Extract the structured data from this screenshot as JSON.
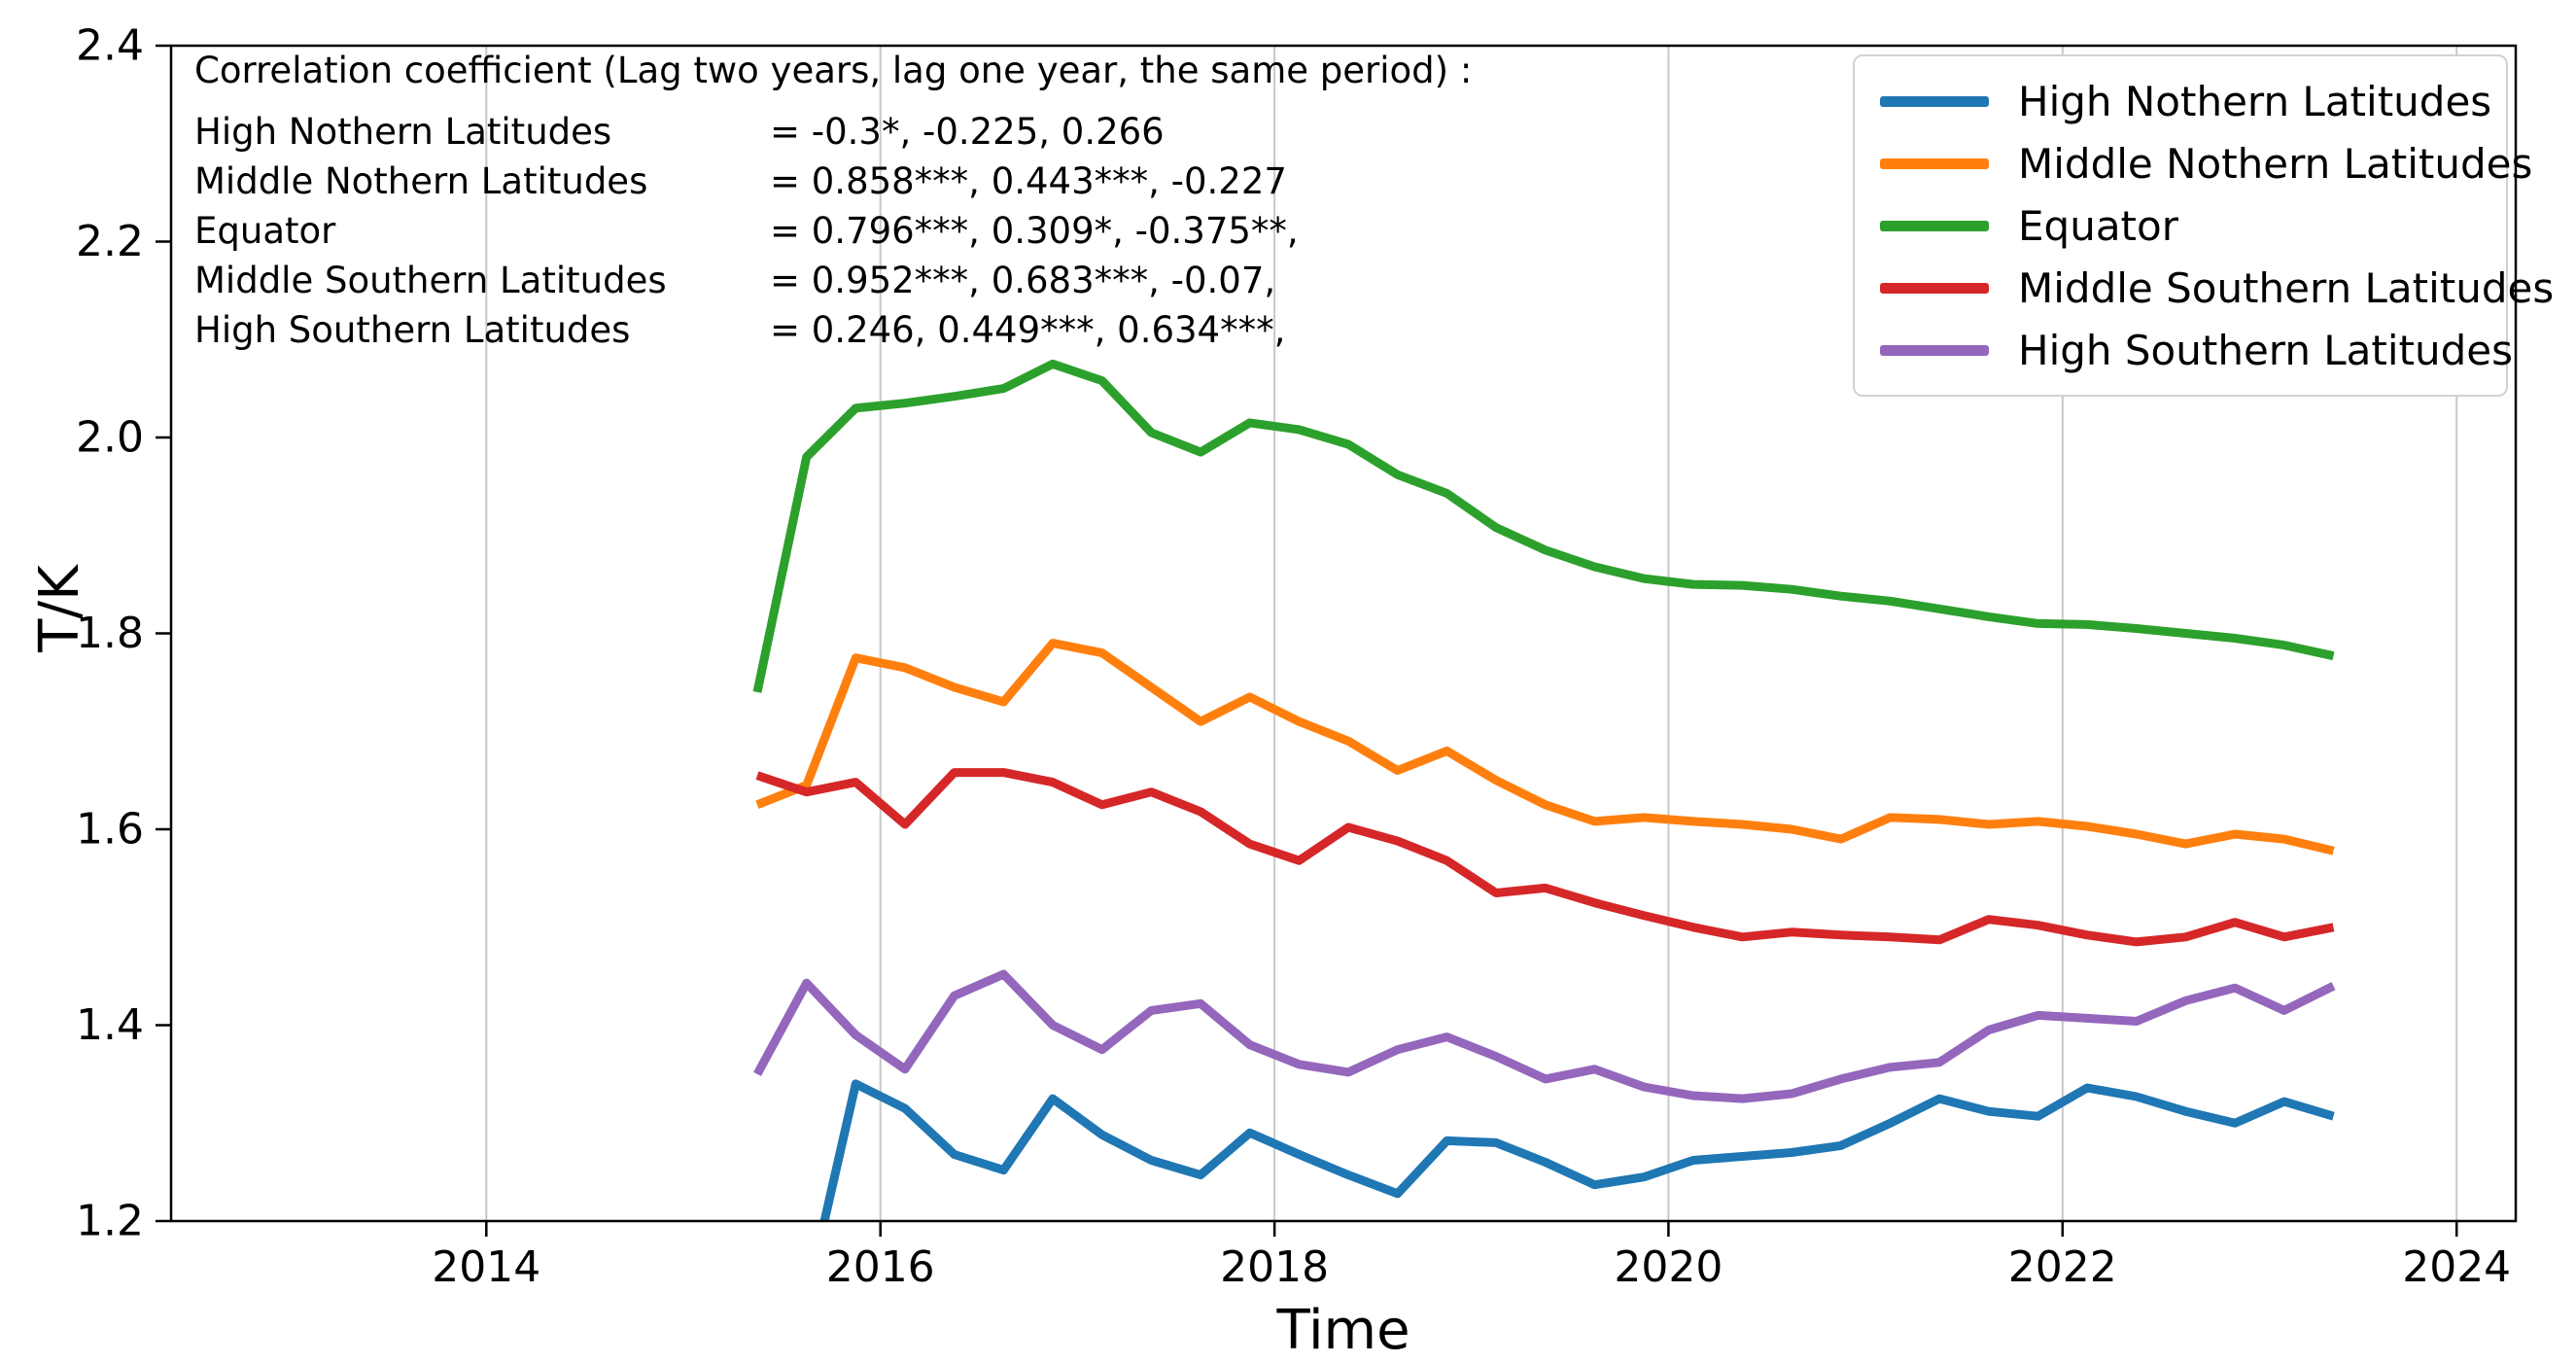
{
  "chart_data": {
    "type": "line",
    "title": "",
    "xlabel": "Time",
    "ylabel": "T/K",
    "xlim": [
      2012.4,
      2024.3
    ],
    "ylim": [
      1.2,
      2.4
    ],
    "xticks": [
      2014,
      2016,
      2018,
      2020,
      2022,
      2024
    ],
    "yticks": [
      1.2,
      1.4,
      1.6,
      1.8,
      2.0,
      2.2,
      2.4
    ],
    "grid": "vertical",
    "grid_color": "#c8c8c8",
    "legend_position": "upper right",
    "line_width": 9,
    "x": [
      2015.375,
      2015.625,
      2015.875,
      2016.125,
      2016.375,
      2016.625,
      2016.875,
      2017.125,
      2017.375,
      2017.625,
      2017.875,
      2018.125,
      2018.375,
      2018.625,
      2018.875,
      2019.125,
      2019.375,
      2019.625,
      2019.875,
      2020.125,
      2020.375,
      2020.625,
      2020.875,
      2021.125,
      2021.375,
      2021.625,
      2021.875,
      2022.125,
      2022.375,
      2022.625,
      2022.875,
      2023.125,
      2023.375
    ],
    "series": [
      {
        "name": "High Nothern Latitudes",
        "color": "#1f77b4",
        "values": [
          null,
          1.12,
          1.34,
          1.315,
          1.268,
          1.252,
          1.325,
          1.288,
          1.262,
          1.247,
          1.29,
          1.268,
          1.247,
          1.228,
          1.282,
          1.28,
          1.26,
          1.237,
          1.245,
          1.262,
          1.266,
          1.27,
          1.277,
          1.3,
          1.325,
          1.312,
          1.307,
          1.336,
          1.327,
          1.312,
          1.3,
          1.322,
          1.307
        ]
      },
      {
        "name": "Middle Nothern Latitudes",
        "color": "#ff7f0e",
        "values": [
          1.625,
          1.645,
          1.775,
          1.765,
          1.745,
          1.73,
          1.79,
          1.78,
          1.745,
          1.71,
          1.735,
          1.71,
          1.69,
          1.66,
          1.68,
          1.65,
          1.625,
          1.608,
          1.612,
          1.608,
          1.605,
          1.6,
          1.59,
          1.612,
          1.61,
          1.605,
          1.608,
          1.603,
          1.595,
          1.585,
          1.595,
          1.59,
          1.578
        ]
      },
      {
        "name": "Equator",
        "color": "#2ca02c",
        "values": [
          1.74,
          1.98,
          2.03,
          2.035,
          2.042,
          2.05,
          2.075,
          2.058,
          2.005,
          1.985,
          2.015,
          2.008,
          1.993,
          1.962,
          1.943,
          1.908,
          1.885,
          1.868,
          1.856,
          1.85,
          1.849,
          1.845,
          1.838,
          1.833,
          1.825,
          1.817,
          1.81,
          1.809,
          1.805,
          1.8,
          1.795,
          1.788,
          1.777
        ]
      },
      {
        "name": "Middle Southern Latitudes",
        "color": "#d62728",
        "values": [
          1.655,
          1.638,
          1.648,
          1.605,
          1.658,
          1.658,
          1.648,
          1.625,
          1.638,
          1.618,
          1.585,
          1.568,
          1.602,
          1.588,
          1.568,
          1.535,
          1.54,
          1.525,
          1.512,
          1.5,
          1.49,
          1.495,
          1.492,
          1.49,
          1.487,
          1.508,
          1.502,
          1.492,
          1.485,
          1.49,
          1.505,
          1.49,
          1.5
        ]
      },
      {
        "name": "High Southern Latitudes",
        "color": "#9467bd",
        "values": [
          1.35,
          1.443,
          1.39,
          1.355,
          1.43,
          1.452,
          1.4,
          1.375,
          1.415,
          1.422,
          1.38,
          1.36,
          1.352,
          1.375,
          1.388,
          1.368,
          1.345,
          1.355,
          1.337,
          1.328,
          1.325,
          1.33,
          1.345,
          1.357,
          1.362,
          1.395,
          1.41,
          1.407,
          1.404,
          1.425,
          1.438,
          1.415,
          1.44
        ]
      }
    ],
    "annotation": {
      "title": "Correlation coefficient (Lag two years, lag one year, the same period) :",
      "rows": [
        {
          "label": "High Nothern Latitudes",
          "value": "= -0.3*, -0.225, 0.266"
        },
        {
          "label": "Middle Nothern Latitudes",
          "value": "= 0.858***, 0.443***, -0.227"
        },
        {
          "label": "Equator",
          "value": "= 0.796***, 0.309*, -0.375**,"
        },
        {
          "label": "Middle Southern Latitudes",
          "value": "= 0.952***, 0.683***, -0.07,"
        },
        {
          "label": "High Southern Latitudes",
          "value": "= 0.246, 0.449***, 0.634***,"
        }
      ]
    }
  }
}
